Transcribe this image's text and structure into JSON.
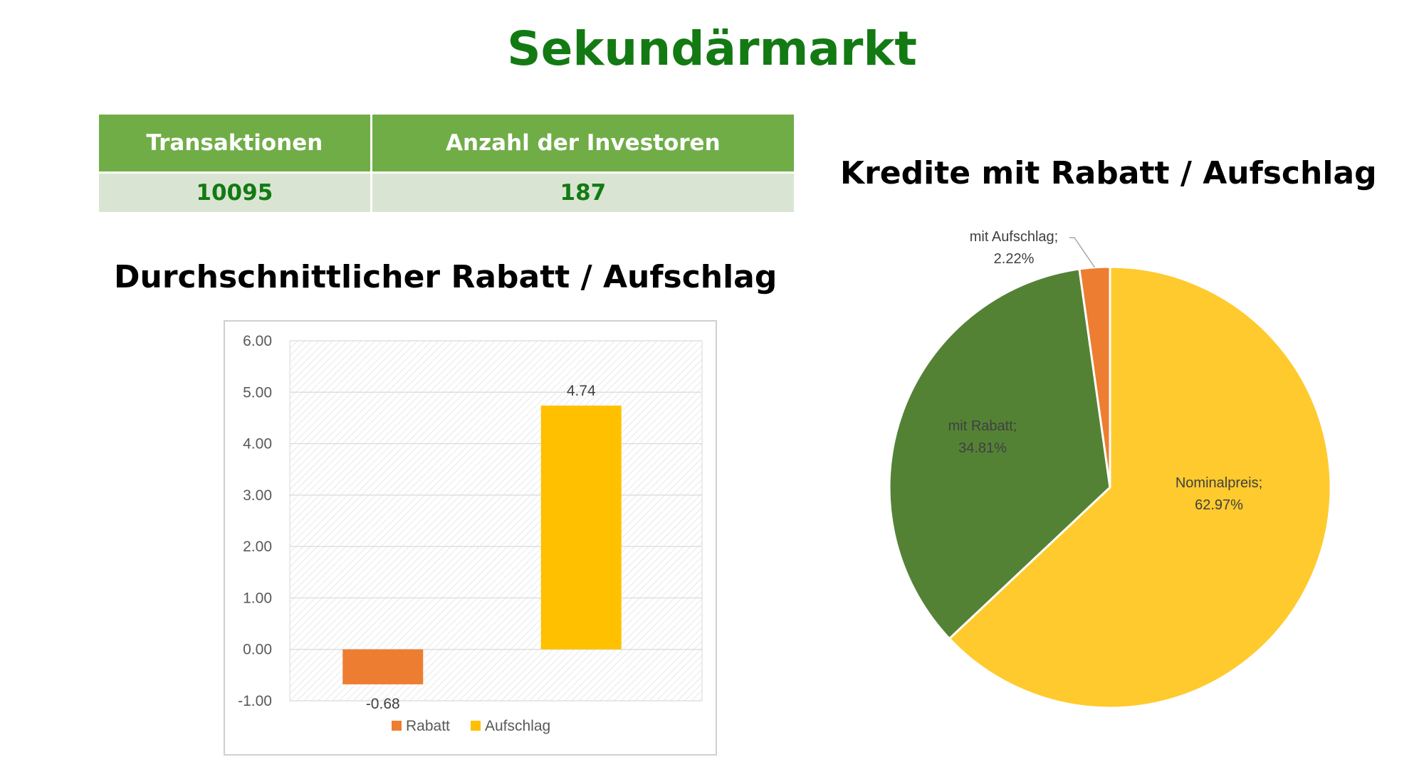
{
  "page": {
    "title": "Sekundärmarkt"
  },
  "stats_table": {
    "headers": [
      "Transaktionen",
      "Anzahl der Investoren"
    ],
    "values": [
      "10095",
      "187"
    ]
  },
  "colors": {
    "title_green": "#137a13",
    "header_green": "#70ad47",
    "row_green": "#d9e5d2",
    "rabatt": "#ed7d31",
    "aufschlag": "#ffc000",
    "pie_nominal": "#ffca2d",
    "pie_rabatt": "#548235",
    "pie_aufschlag": "#ed7d31"
  },
  "chart_data": [
    {
      "type": "bar",
      "title": "Durchschnittlicher Rabatt / Aufschlag",
      "series": [
        {
          "name": "Rabatt",
          "value": -0.68,
          "label": "-0.68"
        },
        {
          "name": "Aufschlag",
          "value": 4.74,
          "label": "4.74"
        }
      ],
      "ylim": [
        -1.0,
        6.0
      ],
      "yticks": [
        6.0,
        5.0,
        4.0,
        3.0,
        2.0,
        1.0,
        0.0,
        -1.0
      ],
      "ytick_labels": [
        "6.00",
        "5.00",
        "4.00",
        "3.00",
        "2.00",
        "1.00",
        "0.00",
        "-1.00"
      ],
      "grid": true,
      "legend": "bottom"
    },
    {
      "type": "pie",
      "title": "Kredite mit Rabatt / Aufschlag",
      "slices": [
        {
          "name": "Nominalpreis",
          "value": 62.97,
          "label": "62.97%"
        },
        {
          "name": "mit Rabatt",
          "value": 34.81,
          "label": "34.81%"
        },
        {
          "name": "mit Aufschlag",
          "value": 2.22,
          "label": "2.22%"
        }
      ]
    }
  ]
}
